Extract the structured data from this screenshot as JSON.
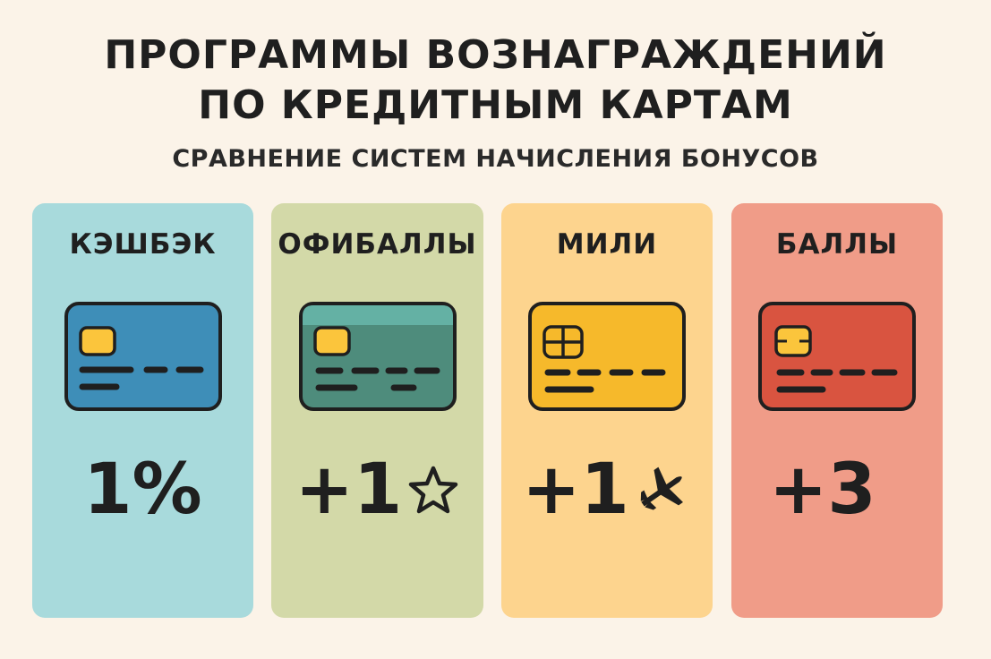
{
  "header": {
    "title_line1": "ПРОГРАММЫ ВОЗНАГРАЖДЕНИЙ",
    "title_line2": "ПО КРЕДИТНЫМ КАРТАМ",
    "subtitle": "СРАВНЕНИЕ СИСТЕМ НАЧИСЛЕНИЯ БОНУСОВ"
  },
  "cards": [
    {
      "label": "КЭШБЭК",
      "value": "1%",
      "icon": "credit-card-icon",
      "value_icon": "",
      "bg": "#a8dadc",
      "card_color": "#3e8eb8"
    },
    {
      "label": "ОФИБАЛЛЫ",
      "value": "+1",
      "icon": "credit-card-icon",
      "value_icon": "star-icon",
      "bg": "#d3d9a8",
      "card_color": "#4e8c7c"
    },
    {
      "label": "МИЛИ",
      "value": "+1",
      "icon": "credit-card-icon",
      "value_icon": "airplane-icon",
      "bg": "#fdd48e",
      "card_color": "#f6b92b"
    },
    {
      "label": "БАЛЛЫ",
      "value": "+3",
      "icon": "credit-card-icon",
      "value_icon": "",
      "bg": "#f09c88",
      "card_color": "#d95440"
    }
  ]
}
